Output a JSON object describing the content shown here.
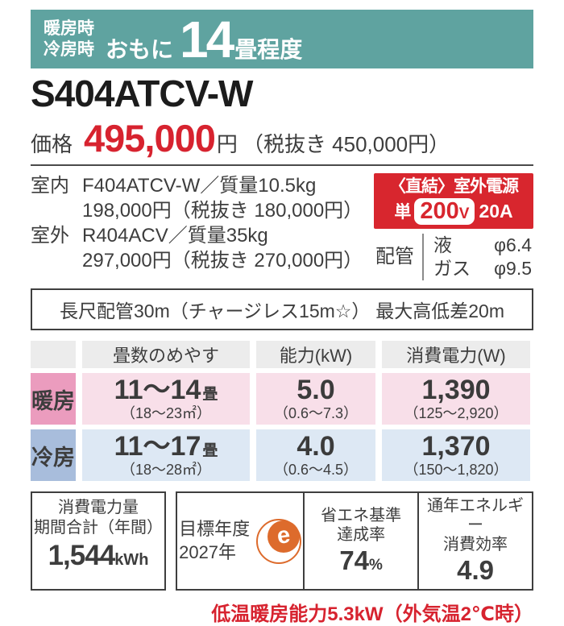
{
  "colors": {
    "teal": "#5fa3a0",
    "red": "#d8262e",
    "orange": "#dd6b2c",
    "pink_label": "#eb9cbe",
    "pink_cell": "#f8dfe9",
    "blue_label": "#a8bddc",
    "blue_cell": "#dde8f4",
    "header_gray": "#ececec"
  },
  "hero": {
    "mode_line1": "暖房時",
    "mode_line2": "冷房時",
    "prefix": "おもに",
    "size": "14",
    "suffix": "畳程度"
  },
  "model": "S404ATCV-W",
  "price": {
    "label": "価格",
    "value": "495,000",
    "unit": "円",
    "tax_note": "（税抜き 450,000円）"
  },
  "units": {
    "indoor_label": "室内",
    "indoor_spec": "F404ATCV-W／質量10.5kg",
    "indoor_price": "198,000円（税抜き 180,000円）",
    "outdoor_label": "室外",
    "outdoor_spec": "R404ACV／質量35kg",
    "outdoor_price": "297,000円（税抜き 270,000円）"
  },
  "power": {
    "title": "〈直結〉室外電源",
    "phase": "単",
    "voltage": "200",
    "volt_unit": "V",
    "amps": "20A"
  },
  "piping": {
    "label": "配管",
    "liquid_name": "液",
    "liquid_value": "φ6.4",
    "gas_name": "ガス",
    "gas_value": "φ9.5"
  },
  "long_pipe": {
    "left": "長尺配管30m（チャージレス15m☆）",
    "right": "最大高低差20m"
  },
  "spec_table": {
    "headers": [
      "",
      "畳数のめやす",
      "能力(kW)",
      "消費電力(W)"
    ],
    "rows": [
      {
        "label": "暖房",
        "tatami_main": "11～14",
        "tatami_unit": "畳",
        "tatami_sub": "（18～23㎡）",
        "capacity_main": "5.0",
        "capacity_sub": "（0.6～7.3）",
        "power_main": "1,390",
        "power_sub": "（125～2,920）"
      },
      {
        "label": "冷房",
        "tatami_main": "11～17",
        "tatami_unit": "畳",
        "tatami_sub": "（18～28㎡）",
        "capacity_main": "4.0",
        "capacity_sub": "（0.6～4.5）",
        "power_main": "1,370",
        "power_sub": "（150～1,820）"
      }
    ]
  },
  "annual_power": {
    "title_line1": "消費電力量",
    "title_line2": "期間合計（年間）",
    "value": "1,544",
    "unit": "kWh"
  },
  "energy_label": {
    "target_line1": "目標年度",
    "target_line2": "2027年",
    "e_char": "e",
    "standard_line1": "省エネ基準",
    "standard_line2": "達成率",
    "rate_value": "74",
    "rate_unit": "%",
    "apf_line1": "通年エネルギー",
    "apf_line2": "消費効率",
    "apf_value": "4.9"
  },
  "footnote": "低温暖房能力5.3kW（外気温2℃時）"
}
